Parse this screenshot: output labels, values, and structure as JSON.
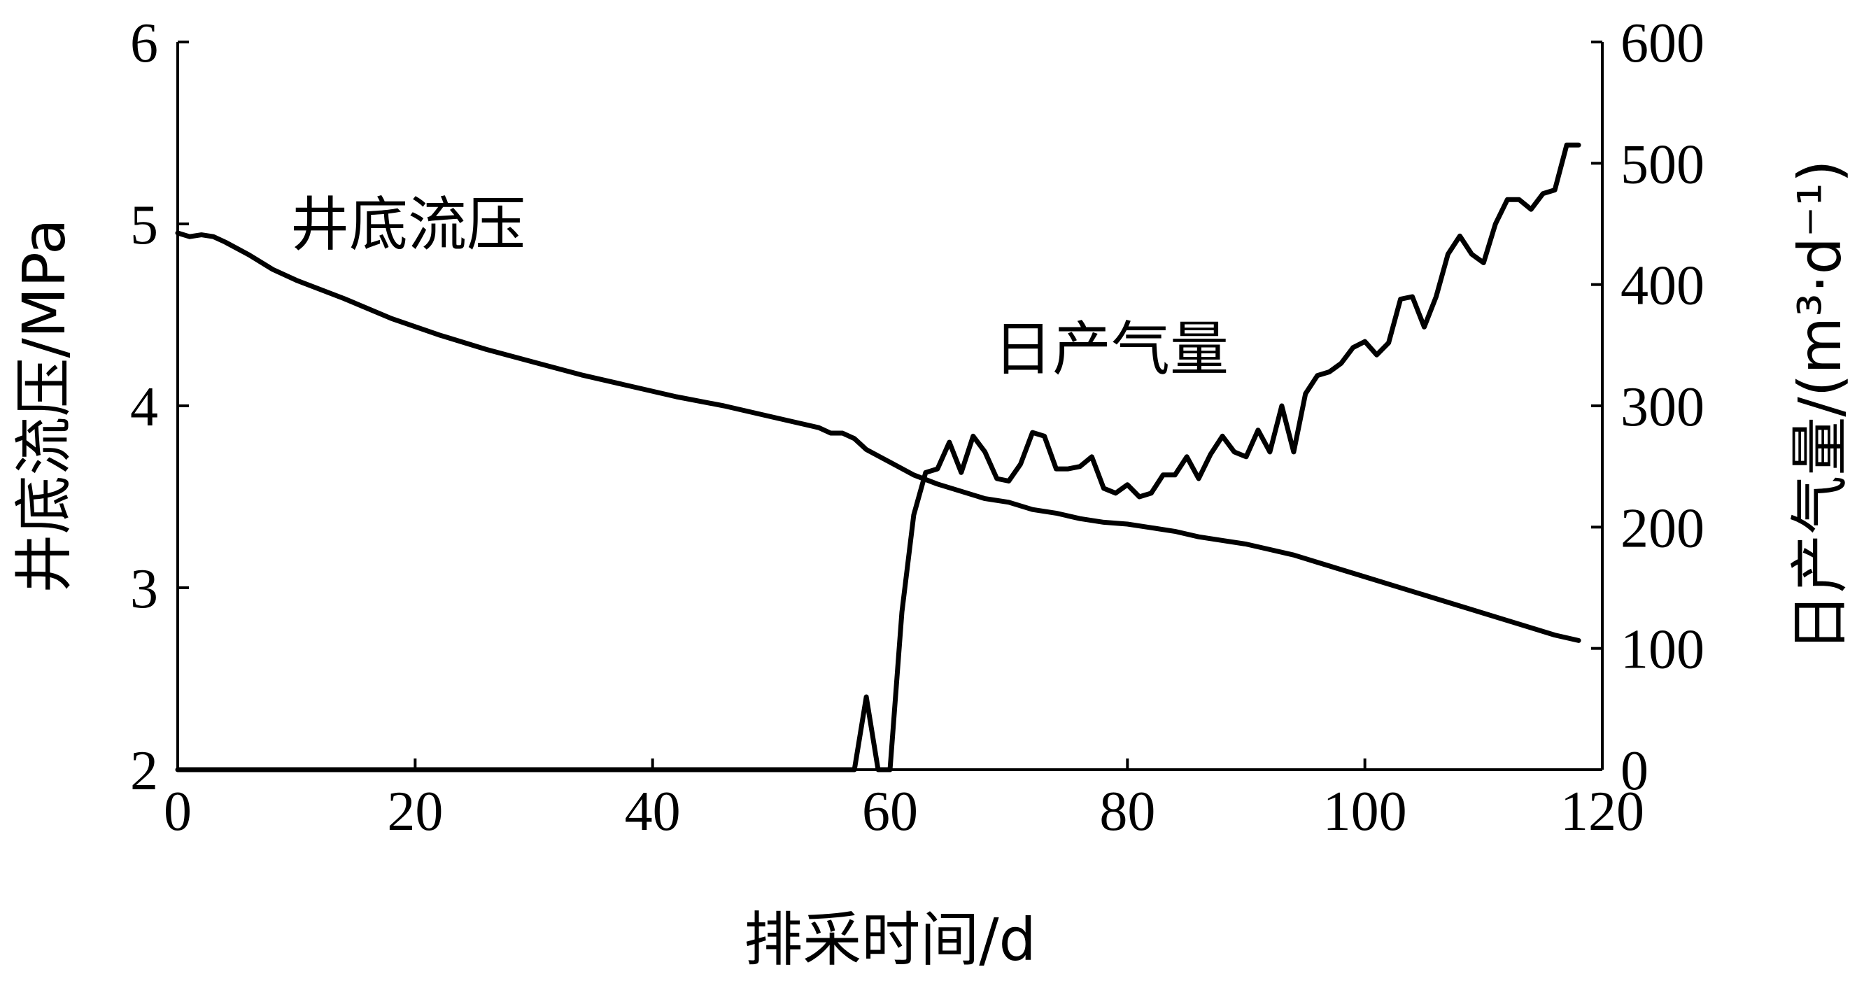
{
  "chart_data": {
    "type": "line",
    "xlabel": "排采时间/d",
    "ylabel_left": "井底流压/MPa",
    "ylabel_right": "日产气量/(m³·d⁻¹)",
    "xlim": [
      0,
      120
    ],
    "ylim_left": [
      2,
      6
    ],
    "ylim_right": [
      0,
      600
    ],
    "x_ticks": [
      "0",
      "20",
      "40",
      "60",
      "80",
      "100",
      "120"
    ],
    "y_left_ticks": [
      "2",
      "3",
      "4",
      "5",
      "6"
    ],
    "y_right_ticks": [
      "0",
      "100",
      "200",
      "300",
      "400",
      "500",
      "600"
    ],
    "grid": false,
    "annotations": [
      {
        "text": "井底流压",
        "series": "pressure"
      },
      {
        "text": "日产气量",
        "series": "gas"
      }
    ],
    "series": [
      {
        "id": "pressure",
        "axis": "left",
        "x": [
          0,
          1,
          2,
          3,
          4,
          6,
          8,
          10,
          14,
          18,
          22,
          26,
          30,
          34,
          38,
          42,
          46,
          50,
          54,
          55,
          56,
          57,
          58,
          60,
          62,
          64,
          66,
          68,
          70,
          72,
          74,
          76,
          78,
          80,
          82,
          84,
          86,
          88,
          90,
          92,
          94,
          96,
          98,
          100,
          104,
          108,
          112,
          116,
          118
        ],
        "y": [
          4.95,
          4.93,
          4.94,
          4.93,
          4.9,
          4.83,
          4.75,
          4.69,
          4.59,
          4.48,
          4.39,
          4.31,
          4.24,
          4.17,
          4.11,
          4.05,
          4.0,
          3.94,
          3.88,
          3.85,
          3.85,
          3.82,
          3.76,
          3.69,
          3.62,
          3.57,
          3.53,
          3.49,
          3.47,
          3.43,
          3.41,
          3.38,
          3.36,
          3.35,
          3.33,
          3.31,
          3.28,
          3.26,
          3.24,
          3.21,
          3.18,
          3.14,
          3.1,
          3.06,
          2.98,
          2.9,
          2.82,
          2.74,
          2.71
        ]
      },
      {
        "id": "gas",
        "axis": "right",
        "x": [
          0,
          57,
          58,
          59,
          60,
          61,
          62,
          63,
          64,
          65,
          66,
          67,
          68,
          69,
          70,
          71,
          72,
          73,
          74,
          75,
          76,
          77,
          78,
          79,
          80,
          81,
          82,
          83,
          84,
          85,
          86,
          87,
          88,
          89,
          90,
          91,
          92,
          93,
          94,
          95,
          96,
          97,
          98,
          99,
          100,
          101,
          102,
          103,
          104,
          105,
          106,
          107,
          108,
          109,
          110,
          111,
          112,
          113,
          114,
          115,
          116,
          117,
          118
        ],
        "y": [
          0,
          0,
          60,
          0,
          0,
          130,
          210,
          245,
          248,
          270,
          245,
          275,
          262,
          240,
          238,
          252,
          278,
          275,
          248,
          248,
          250,
          258,
          232,
          228,
          235,
          225,
          228,
          243,
          243,
          258,
          240,
          260,
          275,
          262,
          258,
          280,
          262,
          300,
          262,
          310,
          325,
          328,
          335,
          348,
          353,
          342,
          352,
          388,
          390,
          365,
          390,
          425,
          440,
          425,
          418,
          450,
          470,
          470,
          462,
          475,
          478,
          515,
          515
        ]
      }
    ]
  }
}
